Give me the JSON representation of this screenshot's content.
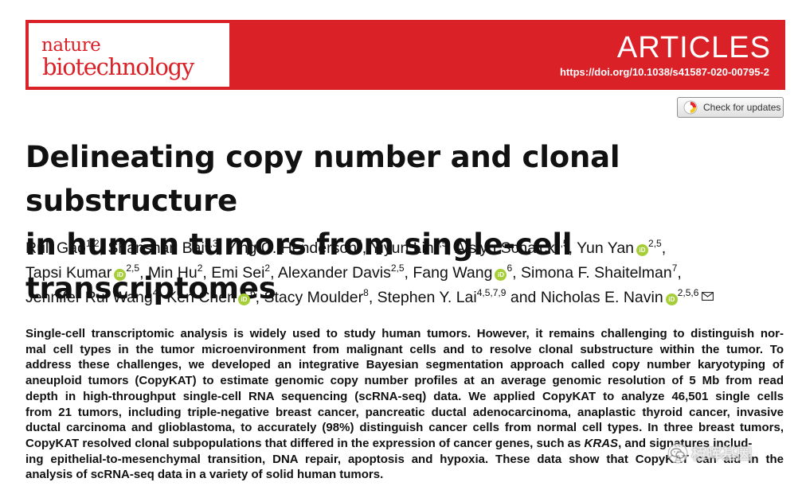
{
  "header": {
    "journal_line1": "nature",
    "journal_line2": "biotechnology",
    "section_label": "ARTICLES",
    "doi": "https://doi.org/10.1038/s41587-020-00795-2",
    "brand_color": "#da2128"
  },
  "check_updates": {
    "label": "Check for updates",
    "icon": "check-updates-icon"
  },
  "article": {
    "title_line1": "Delineating copy number and clonal substructure",
    "title_line2": "in human tumors from single-cell transcriptomes",
    "authors": [
      {
        "name": "Ruli Gao",
        "aff": "1,2",
        "orcid": false
      },
      {
        "name": "Shanshan Bai",
        "aff": "2,3",
        "orcid": false
      },
      {
        "name": "Ying C. Henderson",
        "aff": "4",
        "orcid": false
      },
      {
        "name": "Yiyun Lin",
        "aff": "2,5",
        "orcid": false
      },
      {
        "name": "Aislyn Schalck",
        "aff": "2,5",
        "orcid": false
      },
      {
        "name": "Yun Yan",
        "aff": "2,5",
        "orcid": true
      },
      {
        "name": "Tapsi Kumar",
        "aff": "2,5",
        "orcid": true
      },
      {
        "name": "Min Hu",
        "aff": "2",
        "orcid": false
      },
      {
        "name": "Emi Sei",
        "aff": "2",
        "orcid": false
      },
      {
        "name": "Alexander Davis",
        "aff": "2,5",
        "orcid": false
      },
      {
        "name": "Fang Wang",
        "aff": "6",
        "orcid": true
      },
      {
        "name": "Simona F. Shaitelman",
        "aff": "7",
        "orcid": false
      },
      {
        "name": "Jennifer Rui Wang",
        "aff": "4",
        "orcid": false
      },
      {
        "name": "Ken Chen",
        "aff": "6",
        "orcid": true
      },
      {
        "name": "Stacy Moulder",
        "aff": "8",
        "orcid": false
      },
      {
        "name": "Stephen Y. Lai",
        "aff": "4,5,7,9",
        "orcid": false
      },
      {
        "name": "Nicholas E. Navin",
        "aff": "2,5,6",
        "orcid": true
      }
    ],
    "author_separator": ",",
    "author_conjunction": "and",
    "orcid_label": "iD",
    "abstract_lines": [
      "Single-cell transcriptomic analysis is widely used to study human tumors. However, it remains challenging to distinguish nor-",
      "mal cell types in the tumor microenvironment from malignant cells and to resolve clonal substructure within the tumor. To",
      "address these challenges, we developed an integrative Bayesian segmentation approach called copy number karyotyping of",
      "aneuploid tumors (CopyKAT) to estimate genomic copy number profiles at an average genomic resolution of 5 Mb from read",
      "depth in high-throughput single-cell RNA sequencing (scRNA-seq) data. We applied CopyKAT to analyze 46,501 single cells",
      "from 21 tumors, including triple-negative breast cancer, pancreatic ductal adenocarcinoma, anaplastic thyroid cancer, invasive",
      "ductal carcinoma and glioblastoma, to accurately (98%) distinguish cancer cells from normal cell types. In three breast tumors,",
      "CopyKAT resolved clonal subpopulations that differed in the expression of cancer genes, such as",
      "ing epithelial-to-mesenchymal transition, DNA repair, apoptosis and hypoxia. These data show that CopyKAT can aid in the",
      "analysis of scRNA-seq data in a variety of solid human tumors."
    ],
    "abstract_italic_gene": "KRAS",
    "abstract_line8_tail": ", and signatures includ-"
  },
  "watermark": {
    "text": "栢晖基因",
    "icon": "wechat-icon"
  }
}
